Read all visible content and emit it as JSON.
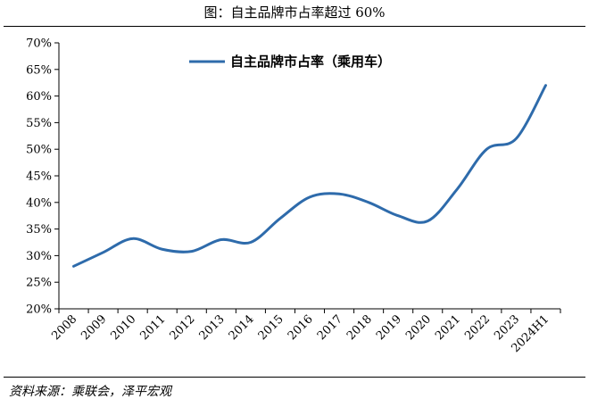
{
  "figure_title": "图：自主品牌市占率超过 60%",
  "source_note": "资料来源：乘联会，泽平宏观",
  "chart_data": {
    "type": "line",
    "title": "",
    "xlabel": "",
    "ylabel": "",
    "categories": [
      "2008",
      "2009",
      "2010",
      "2011",
      "2012",
      "2013",
      "2014",
      "2015",
      "2016",
      "2017",
      "2018",
      "2019",
      "2020",
      "2021",
      "2022",
      "2023",
      "2024H1"
    ],
    "series": [
      {
        "name": "自主品牌市占率（乘用车）",
        "color": "#2e6bab",
        "values": [
          28.0,
          30.6,
          33.2,
          31.2,
          30.8,
          33.0,
          32.5,
          37.0,
          41.0,
          41.6,
          40.0,
          37.5,
          36.5,
          42.5,
          50.0,
          52.0,
          62.0
        ]
      }
    ],
    "ylim": [
      20,
      70
    ],
    "yticks": [
      20,
      25,
      30,
      35,
      40,
      45,
      50,
      55,
      60,
      65,
      70
    ],
    "ytick_format": "percent",
    "legend_position": "top-center",
    "grid": false
  }
}
